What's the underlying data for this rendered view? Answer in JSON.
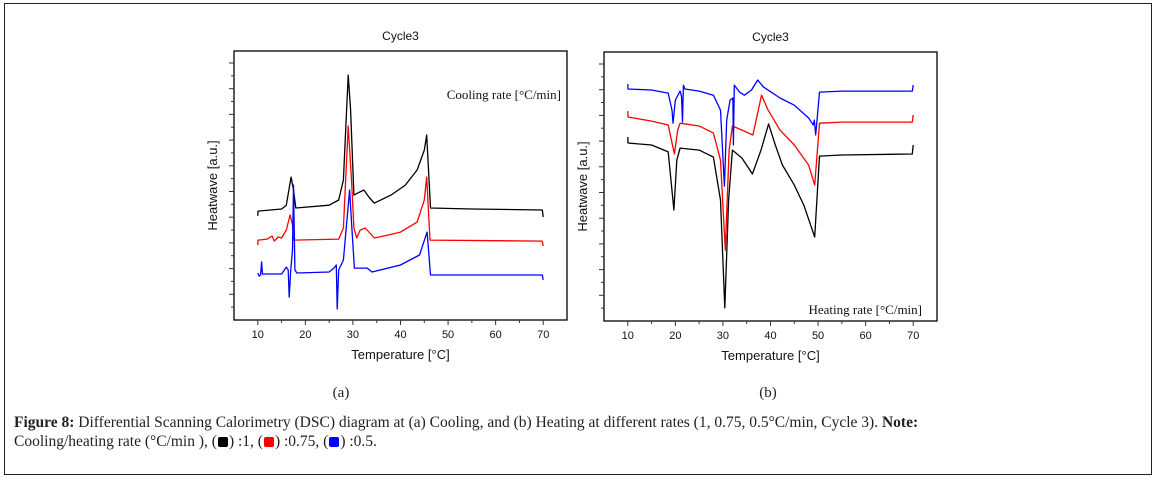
{
  "figure": {
    "panel_labels": [
      "(a)",
      "(b)"
    ],
    "caption": {
      "label": "Figure 8:",
      "text": " Differential Scanning Calorimetry (DSC) diagram at (a) Cooling, and (b) Heating at different rates (1, 0.75, 0.5°C/min, Cycle 3). ",
      "note_label": "Note:",
      "note_line2_prefix": "Cooling/heating rate (°C/min ), (",
      "legend": [
        {
          "color": "#000000",
          "suffix": ") :1, ("
        },
        {
          "color": "#ff0000",
          "suffix": ") :0.75, ("
        },
        {
          "color": "#0000ff",
          "suffix": ") :0.5."
        }
      ]
    }
  },
  "chart_data": [
    {
      "type": "line",
      "title": "Cycle3",
      "xlabel": "Temperature [°C]",
      "ylabel": "Heatwave [a.u.]",
      "annotation": "Cooling rate [°C/min]",
      "annotation_position": "top-right",
      "xlim": [
        5,
        75
      ],
      "ylim": [
        0,
        10.47
      ],
      "xticks": [
        10,
        20,
        30,
        40,
        50,
        60,
        70
      ],
      "xtick_labels": [
        "10",
        "20",
        "30",
        "40",
        "50",
        "60",
        "70"
      ],
      "yticks_labeled": false,
      "grid": false,
      "series": [
        {
          "name": "1 °C/min",
          "color": "#000000",
          "x": [
            10,
            10.05,
            15,
            16,
            17,
            17.5,
            18,
            25,
            27,
            28,
            29,
            29.5,
            30.2,
            31,
            32.3,
            33.5,
            34.5,
            38,
            41,
            43.5,
            45,
            45.5,
            46.3,
            55,
            69.8,
            70
          ],
          "y": [
            4.05,
            4.24,
            4.32,
            4.47,
            5.56,
            5.06,
            4.36,
            4.47,
            4.67,
            5.45,
            9.53,
            8.17,
            4.86,
            4.94,
            5.06,
            4.75,
            4.55,
            4.86,
            5.25,
            5.84,
            6.61,
            7.2,
            4.36,
            4.32,
            4.28,
            4.01
          ]
        },
        {
          "name": "0.75 °C/min",
          "color": "#ff0000",
          "x": [
            10,
            10.05,
            12,
            13,
            13.5,
            14.3,
            15,
            16,
            16.8,
            17.3,
            17.5,
            27,
            28,
            29,
            29.7,
            30.2,
            30.8,
            31.5,
            32.6,
            34.5,
            36.5,
            40,
            43.5,
            45,
            45.5,
            46.2,
            69.8,
            70
          ],
          "y": [
            2.92,
            3.11,
            3.15,
            3.27,
            3.07,
            3.23,
            3.19,
            3.5,
            4.09,
            3.7,
            3.11,
            3.15,
            3.58,
            7.55,
            5.45,
            3.58,
            3.19,
            3.5,
            3.58,
            3.19,
            3.27,
            3.42,
            3.81,
            4.67,
            5.56,
            3.11,
            3.07,
            2.88
          ]
        },
        {
          "name": "0.5 °C/min",
          "color": "#0000ff",
          "x": [
            10,
            10.3,
            10.6,
            10.8,
            11,
            15,
            16,
            16.4,
            16.6,
            16.9,
            17.3,
            17.5,
            17.8,
            18.2,
            25,
            26,
            26.5,
            26.7,
            27,
            28,
            29.3,
            29.8,
            30.3,
            33,
            34,
            40,
            44,
            45.6,
            46.3,
            69.8,
            70
          ],
          "y": [
            1.83,
            1.71,
            1.75,
            2.26,
            1.79,
            1.79,
            2.06,
            1.95,
            0.89,
            1.87,
            2.72,
            5.25,
            1.95,
            1.83,
            1.87,
            2.02,
            2.14,
            0.43,
            1.95,
            2.33,
            5.06,
            3.5,
            2.02,
            2.02,
            1.87,
            2.14,
            2.53,
            3.42,
            1.75,
            1.75,
            1.56
          ]
        }
      ]
    },
    {
      "type": "line",
      "title": "Cycle3",
      "xlabel": "Temperature [°C]",
      "ylabel": "Heatwave [a.u.]",
      "annotation": "Heating rate [°C/min]",
      "annotation_position": "bottom-right",
      "xlim": [
        5,
        75
      ],
      "ylim": [
        0,
        10.47
      ],
      "xticks": [
        10,
        20,
        30,
        40,
        50,
        60,
        70
      ],
      "xtick_labels": [
        "10",
        "20",
        "30",
        "40",
        "50",
        "60",
        "70"
      ],
      "yticks_labeled": false,
      "grid": false,
      "series": [
        {
          "name": "1 °C/min",
          "color": "#000000",
          "x": [
            10,
            10.05,
            15,
            18.5,
            19.7,
            20.3,
            21,
            25,
            28,
            29.5,
            30.4,
            31.2,
            32,
            34,
            36.2,
            38,
            39.6,
            41,
            42.5,
            45,
            47,
            49.3,
            50.3,
            55,
            69.8,
            70
          ],
          "y": [
            7.16,
            6.93,
            6.85,
            6.58,
            4.32,
            6.26,
            6.73,
            6.65,
            6.38,
            4.71,
            0.51,
            4.71,
            6.65,
            6.34,
            5.72,
            6.65,
            7.67,
            6.85,
            6.07,
            5.29,
            4.51,
            3.27,
            6.42,
            6.46,
            6.5,
            6.85
          ]
        },
        {
          "name": "0.75 °C/min",
          "color": "#ff0000",
          "x": [
            10,
            10.05,
            15,
            18.5,
            19.8,
            20.5,
            21,
            25,
            28,
            29.5,
            30.5,
            31.3,
            32,
            34,
            36.3,
            38.1,
            39.5,
            42,
            45,
            48,
            49.3,
            50.3,
            55,
            69.8,
            70
          ],
          "y": [
            8.17,
            7.94,
            7.78,
            7.63,
            6.5,
            7.43,
            7.7,
            7.59,
            7.32,
            6.26,
            2.76,
            6.65,
            7.59,
            7.43,
            7.24,
            8.79,
            8.21,
            7.43,
            6.85,
            6.07,
            5.29,
            7.7,
            7.74,
            7.74,
            8.02
          ]
        },
        {
          "name": "0.5 °C/min",
          "color": "#0000ff",
          "x": [
            10,
            10.05,
            15,
            18.5,
            19.3,
            19.5,
            20,
            21,
            21.3,
            21.5,
            21.7,
            22,
            25,
            28,
            29.5,
            30.3,
            30.8,
            31.5,
            32.1,
            32.2,
            32.4,
            33.5,
            34.5,
            36,
            37.3,
            38.5,
            42,
            45,
            48,
            49,
            49.2,
            49.5,
            50.3,
            55,
            69.8,
            70
          ],
          "y": [
            9.22,
            9.03,
            8.99,
            8.87,
            8.21,
            7.7,
            8.6,
            8.95,
            8.75,
            7.74,
            9.18,
            9.03,
            8.95,
            8.79,
            8.21,
            5.25,
            7.82,
            8.6,
            8.68,
            6.85,
            9.18,
            8.91,
            8.79,
            8.99,
            9.38,
            9.11,
            8.68,
            8.4,
            7.9,
            7.63,
            7.82,
            7.24,
            8.91,
            8.95,
            8.95,
            9.18
          ]
        }
      ]
    }
  ]
}
